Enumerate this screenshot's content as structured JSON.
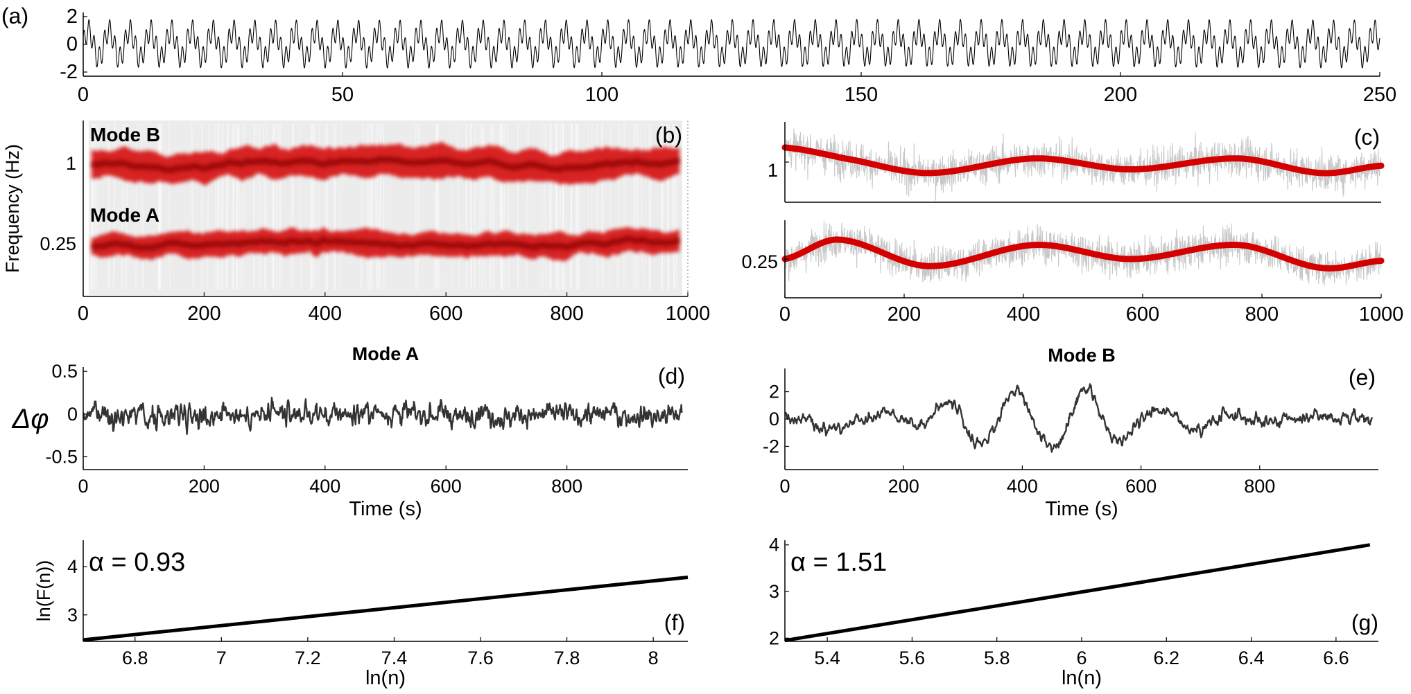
{
  "colors": {
    "signal": "#000000",
    "ridge": "#d40000",
    "ridge_dark": "#8a0000",
    "raw_freq": "#c8c8c8",
    "phase": "#333333",
    "spectrogram_bg": "#dcdcdc",
    "axis": "#000000"
  },
  "chart_data": [
    {
      "panel": "a",
      "panel_label": "(a)",
      "type": "line",
      "xlim": [
        0,
        250
      ],
      "ylim": [
        -2.3,
        2.3
      ],
      "xticks": [
        0,
        50,
        100,
        150,
        200,
        250
      ],
      "xtick_labels": [
        "0",
        "50",
        "100",
        "150",
        "200",
        "250"
      ],
      "yticks": [
        -2,
        0,
        2
      ],
      "ytick_labels": [
        "-2",
        "0",
        "2"
      ],
      "signal": {
        "components": [
          {
            "amplitude": 1.0,
            "frequency": 0.25
          },
          {
            "amplitude": 0.8,
            "frequency": 1.0
          }
        ]
      }
    },
    {
      "panel": "b",
      "panel_label": "(b)",
      "type": "heatmap",
      "ylabel": "Frequency (Hz)",
      "xlim": [
        0,
        1000
      ],
      "xticks": [
        0,
        200,
        400,
        600,
        800,
        1000
      ],
      "xtick_labels": [
        "0",
        "200",
        "400",
        "600",
        "800",
        "1000"
      ],
      "ytick_labels": [
        "1",
        "0.25"
      ],
      "yscale": "log",
      "ridges": [
        {
          "name": "Mode B",
          "center_hz": 1.0
        },
        {
          "name": "Mode A",
          "center_hz": 0.25
        }
      ]
    },
    {
      "panel": "c",
      "panel_label": "(c)",
      "type": "line",
      "xlim": [
        0,
        1000
      ],
      "xticks": [
        0,
        200,
        400,
        600,
        800,
        1000
      ],
      "xtick_labels": [
        "0",
        "200",
        "400",
        "600",
        "800",
        "1000"
      ],
      "subplots": [
        {
          "ytick_labels": [
            "1"
          ],
          "mean": 1.0,
          "smooth_x": [
            0,
            100,
            240,
            420,
            580,
            760,
            900,
            1000
          ],
          "smooth_y": [
            1.02,
            1.005,
            0.985,
            1.005,
            0.99,
            1.005,
            0.985,
            0.995
          ]
        },
        {
          "ytick_labels": [
            "0.25"
          ],
          "mean": 0.25,
          "smooth_x": [
            0,
            90,
            240,
            420,
            580,
            760,
            900,
            1000
          ],
          "smooth_y": [
            0.25,
            0.261,
            0.246,
            0.258,
            0.25,
            0.258,
            0.245,
            0.249
          ]
        }
      ]
    },
    {
      "panel": "d",
      "panel_label": "(d)",
      "type": "line",
      "title": "Mode A",
      "xlabel": "Time (s)",
      "ylabel": "Δφ",
      "xlim": [
        0,
        1000
      ],
      "ylim": [
        -0.65,
        0.55
      ],
      "xticks": [
        0,
        200,
        400,
        600,
        800
      ],
      "xtick_labels": [
        "0",
        "200",
        "400",
        "600",
        "800"
      ],
      "yticks": [
        0.5,
        0,
        -0.5
      ],
      "ytick_labels": [
        "0.5",
        "0",
        "-0.5"
      ]
    },
    {
      "panel": "e",
      "panel_label": "(e)",
      "type": "line",
      "title": "Mode B",
      "xlabel": "Time (s)",
      "xlim": [
        0,
        1000
      ],
      "ylim": [
        -3.7,
        3.7
      ],
      "xticks": [
        0,
        200,
        400,
        600,
        800
      ],
      "xtick_labels": [
        "0",
        "200",
        "400",
        "600",
        "800"
      ],
      "yticks": [
        2,
        0,
        -2
      ],
      "ytick_labels": [
        "2",
        "0",
        "-2"
      ]
    },
    {
      "panel": "f",
      "panel_label": "(f)",
      "type": "line",
      "xlabel": "ln(n)",
      "ylabel": "ln(F(n))",
      "annotation": "α = 0.93",
      "xlim": [
        6.68,
        8.08
      ],
      "ylim": [
        2.45,
        4.55
      ],
      "xticks": [
        6.8,
        7,
        7.2,
        7.4,
        7.6,
        7.8,
        8
      ],
      "xtick_labels": [
        "6.8",
        "7",
        "7.2",
        "7.4",
        "7.6",
        "7.8",
        "8"
      ],
      "yticks": [
        3,
        4
      ],
      "ytick_labels": [
        "3",
        "4"
      ],
      "line": {
        "x": [
          6.68,
          8.08
        ],
        "y": [
          2.48,
          3.78
        ]
      }
    },
    {
      "panel": "g",
      "panel_label": "(g)",
      "type": "line",
      "xlabel": "ln(n)",
      "annotation": "α = 1.51",
      "xlim": [
        5.3,
        6.7
      ],
      "ylim": [
        1.93,
        4.1
      ],
      "xticks": [
        5.4,
        5.6,
        5.8,
        6,
        6.2,
        6.4,
        6.6
      ],
      "xtick_labels": [
        "5.4",
        "5.6",
        "5.8",
        "6",
        "6.2",
        "6.4",
        "6.6"
      ],
      "yticks": [
        2,
        3,
        4
      ],
      "ytick_labels": [
        "2",
        "3",
        "4"
      ],
      "line": {
        "x": [
          5.3,
          6.68
        ],
        "y": [
          1.95,
          4.0
        ]
      }
    }
  ]
}
